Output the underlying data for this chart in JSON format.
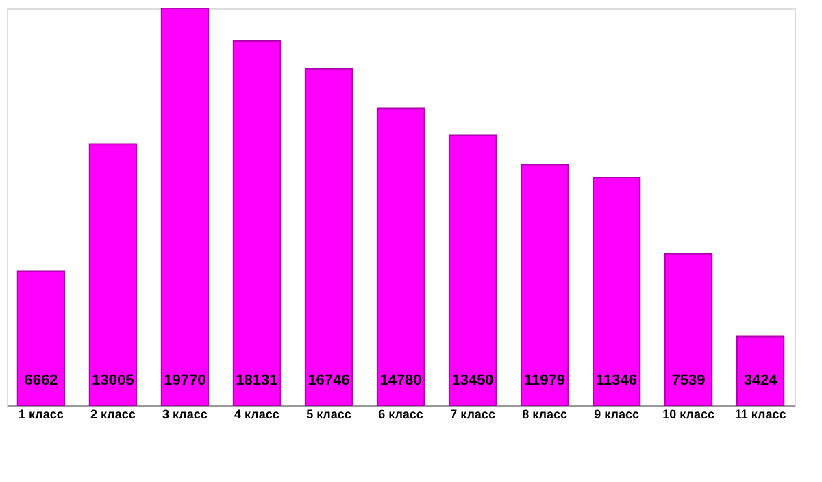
{
  "chart_data": {
    "type": "bar",
    "categories": [
      "1 класс",
      "2 класс",
      "3 класс",
      "4 класс",
      "5 класс",
      "6 класс",
      "7 класс",
      "8 класс",
      "9 класс",
      "10 класс",
      "11 класс"
    ],
    "values": [
      6662,
      13005,
      19770,
      18131,
      16746,
      14780,
      13450,
      11979,
      11346,
      7539,
      3424
    ],
    "color": "#ff00ff",
    "data_labels": true
  }
}
